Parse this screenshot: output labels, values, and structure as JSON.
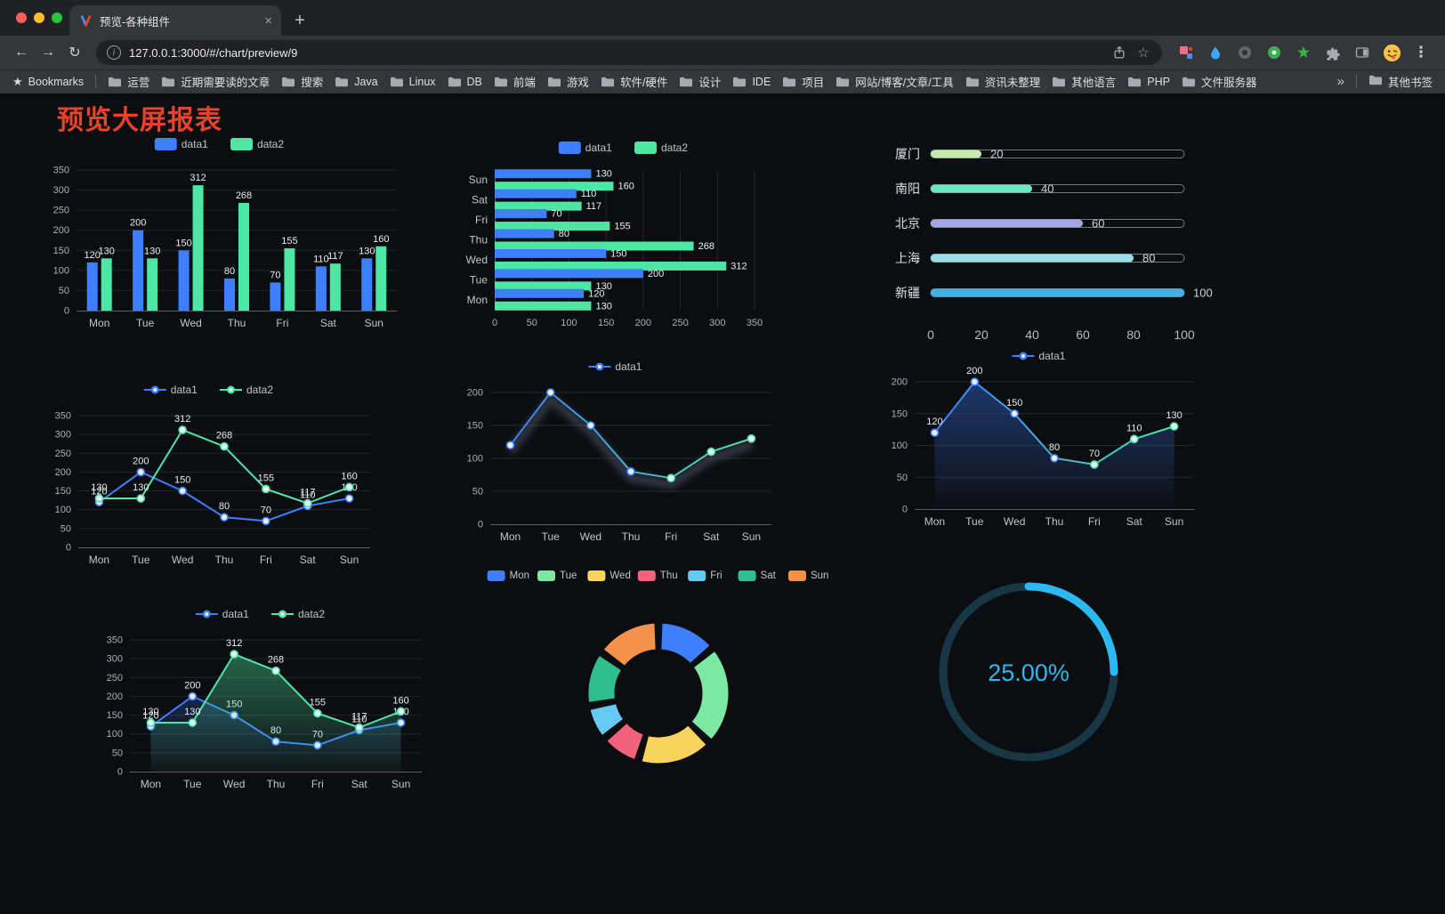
{
  "browser": {
    "tab_title": "预览-各种组件",
    "url": "127.0.0.1:3000/#/chart/preview/9",
    "bookmarks_label": "Bookmarks",
    "bookmarks": [
      "运营",
      "近期需要读的文章",
      "搜索",
      "Java",
      "Linux",
      "DB",
      "前端",
      "游戏",
      "软件/硬件",
      "设计",
      "IDE",
      "项目",
      "网站/博客/文章/工具",
      "资讯未整理",
      "其他语言",
      "PHP",
      "文件服务器"
    ],
    "other_bookmarks_label": "其他书签"
  },
  "page": {
    "title": "预览大屏报表"
  },
  "theme": {
    "background": "#0c0d11",
    "title_color": "#e5432c",
    "axis_label": "#a9afb8",
    "category_label": "#c0c5cc",
    "value_label": "#e9ecf0",
    "grid_line": "#23262c",
    "axis_line": "#5a5f67",
    "series_blue": "#3D7FFF",
    "series_green": "#4DE6A5",
    "gauge_color": "#2CB9F2"
  },
  "chart_data": [
    {
      "type": "bar",
      "orientation": "vertical",
      "categories": [
        "Mon",
        "Tue",
        "Wed",
        "Thu",
        "Fri",
        "Sat",
        "Sun"
      ],
      "series": [
        {
          "name": "data1",
          "color": "#3D7FFF",
          "values": [
            120,
            200,
            150,
            80,
            70,
            110,
            130
          ]
        },
        {
          "name": "data2",
          "color": "#4DE6A5",
          "values": [
            130,
            130,
            312,
            268,
            155,
            117,
            160
          ]
        }
      ],
      "ylim": [
        0,
        350
      ],
      "yticks": [
        0,
        50,
        100,
        150,
        200,
        250,
        300,
        350
      ],
      "legend_position": "top",
      "value_labels": true,
      "grid": true
    },
    {
      "type": "bar",
      "orientation": "horizontal",
      "categories": [
        "Mon",
        "Tue",
        "Wed",
        "Thu",
        "Fri",
        "Sat",
        "Sun"
      ],
      "series": [
        {
          "name": "data1",
          "color": "#3D7FFF",
          "values": [
            120,
            200,
            150,
            80,
            70,
            110,
            130
          ]
        },
        {
          "name": "data2",
          "color": "#4DE6A5",
          "values": [
            130,
            130,
            312,
            268,
            155,
            117,
            160
          ]
        }
      ],
      "xlim": [
        0,
        350
      ],
      "xticks": [
        0,
        50,
        100,
        150,
        200,
        250,
        300,
        350
      ],
      "legend_position": "top",
      "value_labels": true,
      "grid": true
    },
    {
      "type": "bar",
      "orientation": "horizontal",
      "variant": "progress",
      "categories": [
        "厦门",
        "南阳",
        "北京",
        "上海",
        "新疆"
      ],
      "values": [
        20,
        40,
        60,
        80,
        100
      ],
      "colors": [
        "#c4ebad",
        "#6be6c1",
        "#a0a7e6",
        "#96dee8",
        "#3fb1e3"
      ],
      "xlim": [
        0,
        100
      ],
      "xticks": [
        0,
        20,
        40,
        60,
        80,
        100
      ],
      "value_labels": true
    },
    {
      "type": "line",
      "categories": [
        "Mon",
        "Tue",
        "Wed",
        "Thu",
        "Fri",
        "Sat",
        "Sun"
      ],
      "series": [
        {
          "name": "data1",
          "color": "#3D7FFF",
          "values": [
            120,
            200,
            150,
            80,
            70,
            110,
            130
          ],
          "labels": true
        },
        {
          "name": "data2",
          "color": "#4DE6A5",
          "values": [
            130,
            130,
            312,
            268,
            155,
            117,
            160
          ],
          "labels": true
        }
      ],
      "ylim": [
        0,
        350
      ],
      "yticks": [
        0,
        50,
        100,
        150,
        200,
        250,
        300,
        350
      ],
      "legend_position": "top",
      "grid": true
    },
    {
      "type": "line",
      "categories": [
        "Mon",
        "Tue",
        "Wed",
        "Thu",
        "Fri",
        "Sat",
        "Sun"
      ],
      "series": [
        {
          "name": "data1",
          "gradient": [
            "#3D7FFF",
            "#4DE6A5"
          ],
          "values": [
            120,
            200,
            150,
            80,
            70,
            110,
            130
          ],
          "labels": false,
          "shadow": true
        }
      ],
      "ylim": [
        0,
        200
      ],
      "yticks": [
        0,
        50,
        100,
        150,
        200
      ],
      "legend_position": "top",
      "grid": true
    },
    {
      "type": "line",
      "categories": [
        "Mon",
        "Tue",
        "Wed",
        "Thu",
        "Fri",
        "Sat",
        "Sun"
      ],
      "series": [
        {
          "name": "data1",
          "gradient": [
            "#3D7FFF",
            "#4DE6A5"
          ],
          "values": [
            120,
            200,
            150,
            80,
            70,
            110,
            130
          ],
          "labels": true,
          "area": {
            "from": "rgba(61,127,255,0.38)",
            "to": "rgba(61,127,255,0.02)"
          }
        }
      ],
      "ylim": [
        0,
        200
      ],
      "yticks": [
        0,
        50,
        100,
        150,
        200
      ],
      "legend_position": "top",
      "grid": true
    },
    {
      "type": "line",
      "categories": [
        "Mon",
        "Tue",
        "Wed",
        "Thu",
        "Fri",
        "Sat",
        "Sun"
      ],
      "series": [
        {
          "name": "data1",
          "color": "#3D7FFF",
          "values": [
            120,
            200,
            150,
            80,
            70,
            110,
            130
          ],
          "labels": true,
          "area": {
            "from": "rgba(61,127,255,0.22)",
            "to": "rgba(61,127,255,0.01)"
          }
        },
        {
          "name": "data2",
          "color": "#4DE6A5",
          "values": [
            130,
            130,
            312,
            268,
            155,
            117,
            160
          ],
          "labels": true,
          "area": {
            "from": "rgba(77,230,165,0.40)",
            "to": "rgba(77,230,165,0.03)"
          }
        }
      ],
      "ylim": [
        0,
        350
      ],
      "yticks": [
        0,
        50,
        100,
        150,
        200,
        250,
        300,
        350
      ],
      "legend_position": "top",
      "grid": true
    },
    {
      "type": "pie",
      "variant": "donut",
      "categories": [
        "Mon",
        "Tue",
        "Wed",
        "Thu",
        "Fri",
        "Sat",
        "Sun"
      ],
      "values": [
        120,
        200,
        150,
        80,
        70,
        110,
        130
      ],
      "colors": [
        "#3D7FFF",
        "#7CE8A4",
        "#F8D45F",
        "#F0617A",
        "#66C9F4",
        "#2FBF8E",
        "#F5914B"
      ],
      "legend_position": "top"
    },
    {
      "type": "gauge",
      "value": 25,
      "max": 100,
      "label": "25.00%",
      "color": "#2CB9F2",
      "track_color": "#183744"
    }
  ]
}
